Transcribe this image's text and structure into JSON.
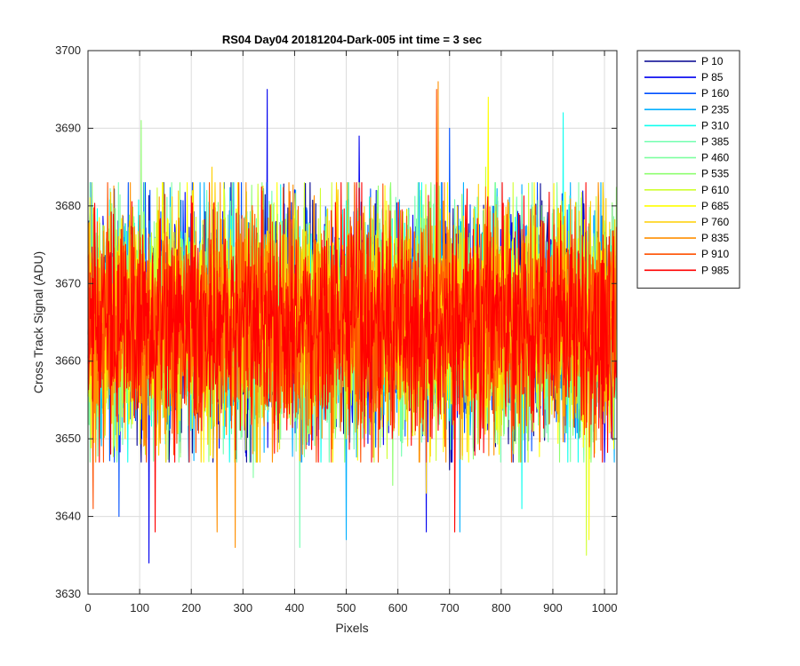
{
  "chart_data": {
    "type": "line",
    "title": "RS04 Day04 20181204-Dark-005 int time = 3 sec",
    "xlabel": "Pixels",
    "ylabel": "Cross Track Signal (ADU)",
    "xlim": [
      0,
      1024
    ],
    "ylim": [
      3630,
      3700
    ],
    "xticks": [
      0,
      100,
      200,
      300,
      400,
      500,
      600,
      700,
      800,
      900,
      1000
    ],
    "yticks": [
      3630,
      3640,
      3650,
      3660,
      3670,
      3680,
      3690,
      3700
    ],
    "grid": true,
    "legend_position": "outside-top-right",
    "pixel_count": 1024,
    "signal_mean": 3665,
    "signal_std": 7,
    "series": [
      {
        "name": "P 10",
        "color": "#00008f",
        "extremes": [
          {
            "x": 430,
            "y": 3683
          },
          {
            "x": 700,
            "y": 3646
          }
        ]
      },
      {
        "name": "P 85",
        "color": "#0000ef",
        "extremes": [
          {
            "x": 347,
            "y": 3695
          },
          {
            "x": 118,
            "y": 3634
          },
          {
            "x": 655,
            "y": 3638
          },
          {
            "x": 525,
            "y": 3689
          }
        ]
      },
      {
        "name": "P 160",
        "color": "#0050ff",
        "extremes": [
          {
            "x": 60,
            "y": 3640
          },
          {
            "x": 700,
            "y": 3690
          }
        ]
      },
      {
        "name": "P 235",
        "color": "#00afff",
        "extremes": [
          {
            "x": 500,
            "y": 3637
          },
          {
            "x": 720,
            "y": 3638
          }
        ]
      },
      {
        "name": "P 310",
        "color": "#10ffef",
        "extremes": [
          {
            "x": 920,
            "y": 3692
          },
          {
            "x": 840,
            "y": 3641
          }
        ]
      },
      {
        "name": "P 385",
        "color": "#70ffaf",
        "extremes": [
          {
            "x": 410,
            "y": 3636
          },
          {
            "x": 230,
            "y": 3682
          }
        ]
      },
      {
        "name": "P 460",
        "color": "#7fffa0",
        "extremes": [
          {
            "x": 320,
            "y": 3645
          },
          {
            "x": 860,
            "y": 3683
          }
        ]
      },
      {
        "name": "P 535",
        "color": "#8fff70",
        "extremes": [
          {
            "x": 103,
            "y": 3691
          },
          {
            "x": 590,
            "y": 3644
          }
        ]
      },
      {
        "name": "P 610",
        "color": "#cfff30",
        "extremes": [
          {
            "x": 965,
            "y": 3635
          },
          {
            "x": 770,
            "y": 3685
          }
        ]
      },
      {
        "name": "P 685",
        "color": "#ffff00",
        "extremes": [
          {
            "x": 775,
            "y": 3694
          },
          {
            "x": 970,
            "y": 3637
          }
        ]
      },
      {
        "name": "P 760",
        "color": "#ffcf00",
        "extremes": [
          {
            "x": 655,
            "y": 3643
          },
          {
            "x": 240,
            "y": 3685
          }
        ]
      },
      {
        "name": "P 835",
        "color": "#ff8f00",
        "extremes": [
          {
            "x": 678,
            "y": 3696
          },
          {
            "x": 285,
            "y": 3636
          },
          {
            "x": 250,
            "y": 3638
          }
        ]
      },
      {
        "name": "P 910",
        "color": "#ff5000",
        "extremes": [
          {
            "x": 675,
            "y": 3695
          },
          {
            "x": 10,
            "y": 3641
          }
        ]
      },
      {
        "name": "P 985",
        "color": "#ff0000",
        "extremes": [
          {
            "x": 130,
            "y": 3638
          },
          {
            "x": 710,
            "y": 3638
          },
          {
            "x": 530,
            "y": 3683
          }
        ]
      }
    ]
  }
}
